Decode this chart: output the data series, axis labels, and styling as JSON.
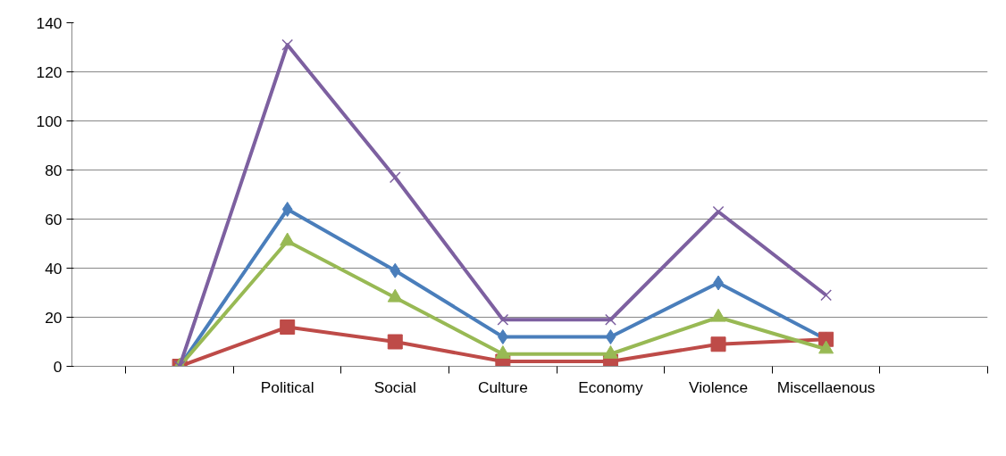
{
  "chart_data": {
    "type": "line",
    "categories": [
      null,
      "Political",
      "Social",
      "Culture",
      "Economy",
      "Violence",
      "Miscellaenous",
      null
    ],
    "ylim": [
      0,
      140
    ],
    "yticks": [
      0,
      20,
      40,
      60,
      80,
      100,
      120,
      140
    ],
    "grid": "y",
    "series": [
      {
        "color": "#4a7ebb",
        "marker": "diamond",
        "values": [
          0,
          64,
          39,
          12,
          12,
          34,
          11,
          null
        ]
      },
      {
        "color": "#be4b48",
        "marker": "square",
        "values": [
          0,
          16,
          10,
          2,
          2,
          9,
          11,
          null
        ]
      },
      {
        "color": "#98b954",
        "marker": "triangle",
        "values": [
          0,
          51,
          28,
          5,
          5,
          20,
          7,
          null
        ]
      },
      {
        "color": "#7d60a0",
        "marker": "cross",
        "values": [
          0,
          131,
          77,
          19,
          19,
          63,
          29,
          null
        ]
      }
    ]
  }
}
